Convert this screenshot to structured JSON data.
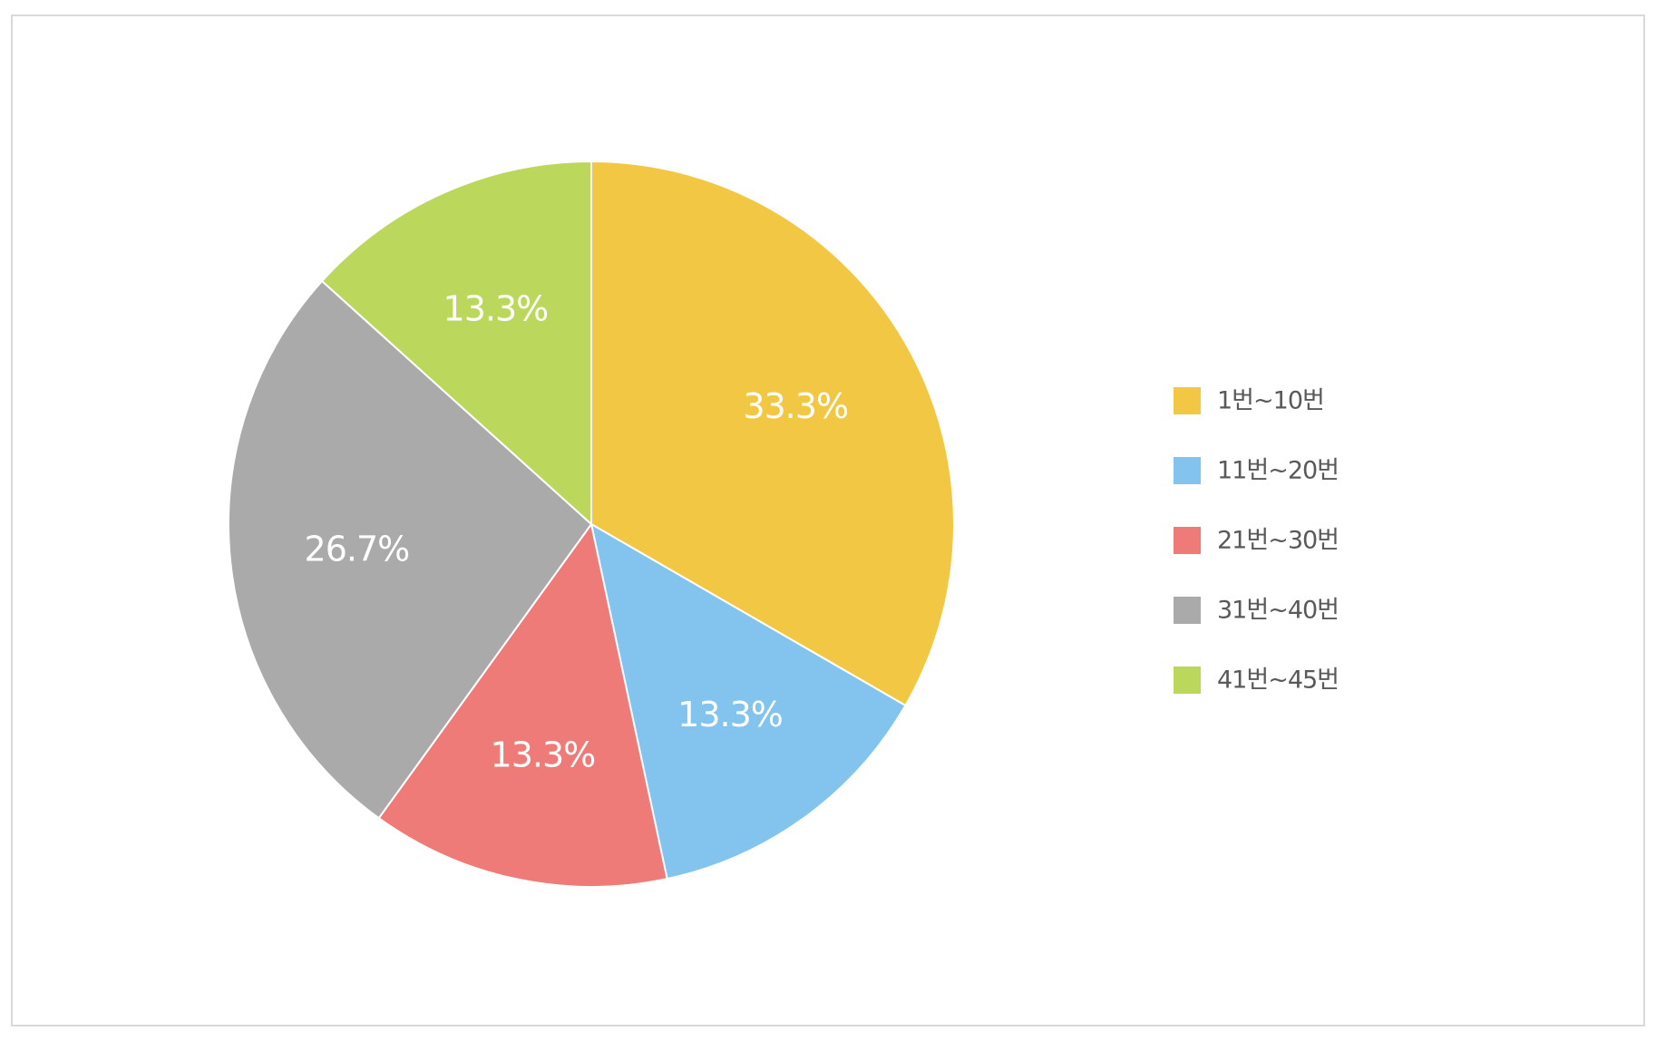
{
  "chart_data": {
    "type": "pie",
    "categories": [
      "1번~10번",
      "11번~20번",
      "21번~30번",
      "31번~40번",
      "41번~45번"
    ],
    "values": [
      33.3,
      13.3,
      13.3,
      26.7,
      13.3
    ],
    "data_labels": [
      "33.3%",
      "13.3%",
      "13.3%",
      "26.7%",
      "13.3%"
    ],
    "colors": [
      "#F2C744",
      "#82C4EE",
      "#EE7B77",
      "#AAAAAA",
      "#BBD85C"
    ],
    "start": "12 o'clock",
    "direction": "clockwise",
    "legend_position": "right"
  }
}
